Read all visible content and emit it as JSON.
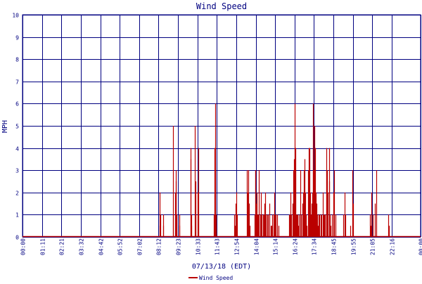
{
  "chart_data": {
    "type": "bar",
    "title": "Wind Speed",
    "xlabel": "07/13/18 (EDT)",
    "ylabel": "MPH",
    "legend": [
      {
        "name": "Wind Speed",
        "color": "#bb0000"
      }
    ],
    "legend_position": "bottom-center",
    "grid": true,
    "xlim": [
      0,
      1440
    ],
    "ylim": [
      0,
      10
    ],
    "yticks": [
      0,
      1,
      2,
      3,
      4,
      5,
      6,
      7,
      8,
      9,
      10
    ],
    "xticks": [
      {
        "t": 0,
        "label": "00:00"
      },
      {
        "t": 71,
        "label": "01:11"
      },
      {
        "t": 141,
        "label": "02:21"
      },
      {
        "t": 212,
        "label": "03:32"
      },
      {
        "t": 282,
        "label": "04:42"
      },
      {
        "t": 352,
        "label": "05:52"
      },
      {
        "t": 422,
        "label": "07:02"
      },
      {
        "t": 492,
        "label": "08:12"
      },
      {
        "t": 563,
        "label": "09:23"
      },
      {
        "t": 633,
        "label": "10:33"
      },
      {
        "t": 703,
        "label": "11:43"
      },
      {
        "t": 774,
        "label": "12:54"
      },
      {
        "t": 844,
        "label": "14:04"
      },
      {
        "t": 914,
        "label": "15:14"
      },
      {
        "t": 984,
        "label": "16:24"
      },
      {
        "t": 1054,
        "label": "17:34"
      },
      {
        "t": 1125,
        "label": "18:45"
      },
      {
        "t": 1195,
        "label": "19:55"
      },
      {
        "t": 1265,
        "label": "21:05"
      },
      {
        "t": 1336,
        "label": "22:16"
      },
      {
        "t": 1440,
        "label": "00:00"
      }
    ],
    "series": [
      {
        "name": "Wind Speed",
        "color": "#bb0000",
        "x": [
          "08:15",
          "08:17",
          "08:19",
          "08:29",
          "08:30",
          "09:04",
          "09:05",
          "09:13",
          "09:14",
          "09:15",
          "09:16",
          "09:27",
          "09:28",
          "10:08",
          "10:09",
          "10:10",
          "10:11",
          "10:24",
          "10:25",
          "10:26",
          "10:34",
          "10:35",
          "10:36",
          "11:32",
          "11:34",
          "11:35",
          "11:36",
          "11:37",
          "11:39",
          "11:40",
          "12:45",
          "12:48",
          "12:50",
          "12:51",
          "12:52",
          "12:54",
          "12:56",
          "13:31",
          "13:33",
          "13:35",
          "13:37",
          "13:39",
          "13:41",
          "14:00",
          "14:01",
          "14:02",
          "14:03",
          "14:05",
          "14:08",
          "14:10",
          "14:13",
          "14:16",
          "14:20",
          "14:23",
          "14:25",
          "14:29",
          "14:32",
          "14:35",
          "14:38",
          "14:40",
          "14:45",
          "14:48",
          "14:52",
          "14:57",
          "15:00",
          "15:04",
          "15:08",
          "15:10",
          "15:12",
          "15:14",
          "15:17",
          "15:20",
          "15:25",
          "16:05",
          "16:07",
          "16:10",
          "16:13",
          "16:16",
          "16:19",
          "16:22",
          "16:24",
          "16:25",
          "16:26",
          "16:27",
          "16:29",
          "16:30",
          "16:31",
          "16:33",
          "16:35",
          "16:37",
          "16:40",
          "16:44",
          "16:48",
          "16:52",
          "16:55",
          "16:58",
          "17:00",
          "17:03",
          "17:06",
          "17:09",
          "17:12",
          "17:15",
          "17:18",
          "17:20",
          "17:22",
          "17:25",
          "17:27",
          "17:29",
          "17:30",
          "17:32",
          "17:34",
          "17:36",
          "17:38",
          "17:40",
          "17:42",
          "17:44",
          "17:46",
          "17:48",
          "17:50",
          "17:54",
          "17:58",
          "18:02",
          "18:06",
          "18:09",
          "18:12",
          "18:15",
          "18:18",
          "18:20",
          "18:22",
          "18:25",
          "18:28",
          "18:30",
          "18:32",
          "18:35",
          "18:40",
          "18:44",
          "18:48",
          "18:52",
          "19:20",
          "19:24",
          "19:28",
          "19:45",
          "19:52",
          "19:56",
          "20:58",
          "21:00",
          "21:03",
          "21:06",
          "21:15",
          "21:19",
          "22:04",
          "22:06"
        ],
        "values": [
          2,
          0.5,
          1,
          1,
          0.5,
          5,
          1,
          2,
          3,
          2.5,
          1,
          0.5,
          1,
          3.5,
          4,
          0.5,
          1,
          5,
          2.5,
          1,
          2,
          4,
          1,
          1,
          2,
          4,
          6,
          3,
          1,
          0.5,
          1,
          0.5,
          1,
          1.5,
          0.5,
          2,
          1,
          3,
          1,
          2,
          3,
          1.5,
          0.5,
          1,
          3,
          3,
          1,
          1.5,
          2,
          1,
          1,
          3,
          1,
          2,
          1,
          1,
          1,
          1.5,
          2,
          1,
          1,
          1,
          1.5,
          0.5,
          0.5,
          1,
          1,
          2,
          1,
          1,
          1,
          1,
          0.5,
          1,
          1,
          2,
          1,
          1.5,
          3,
          3.5,
          4,
          6,
          4,
          3,
          1,
          0.5,
          1,
          0.5,
          1,
          0.5,
          1,
          3,
          1,
          1.5,
          2,
          3,
          3.5,
          2,
          1,
          0.5,
          3,
          4,
          4,
          2,
          1,
          1.5,
          2,
          1,
          6,
          4,
          3,
          5,
          4,
          2,
          1,
          1.5,
          1,
          0.5,
          1,
          1,
          1,
          1,
          2,
          1,
          1,
          1,
          3,
          4,
          3,
          2,
          4,
          2.5,
          1,
          0.5,
          1,
          2,
          3,
          1,
          1,
          2,
          1,
          0.5,
          3,
          1.5,
          1,
          0.5,
          2,
          1,
          1.5,
          3,
          1,
          0.5
        ]
      }
    ]
  }
}
